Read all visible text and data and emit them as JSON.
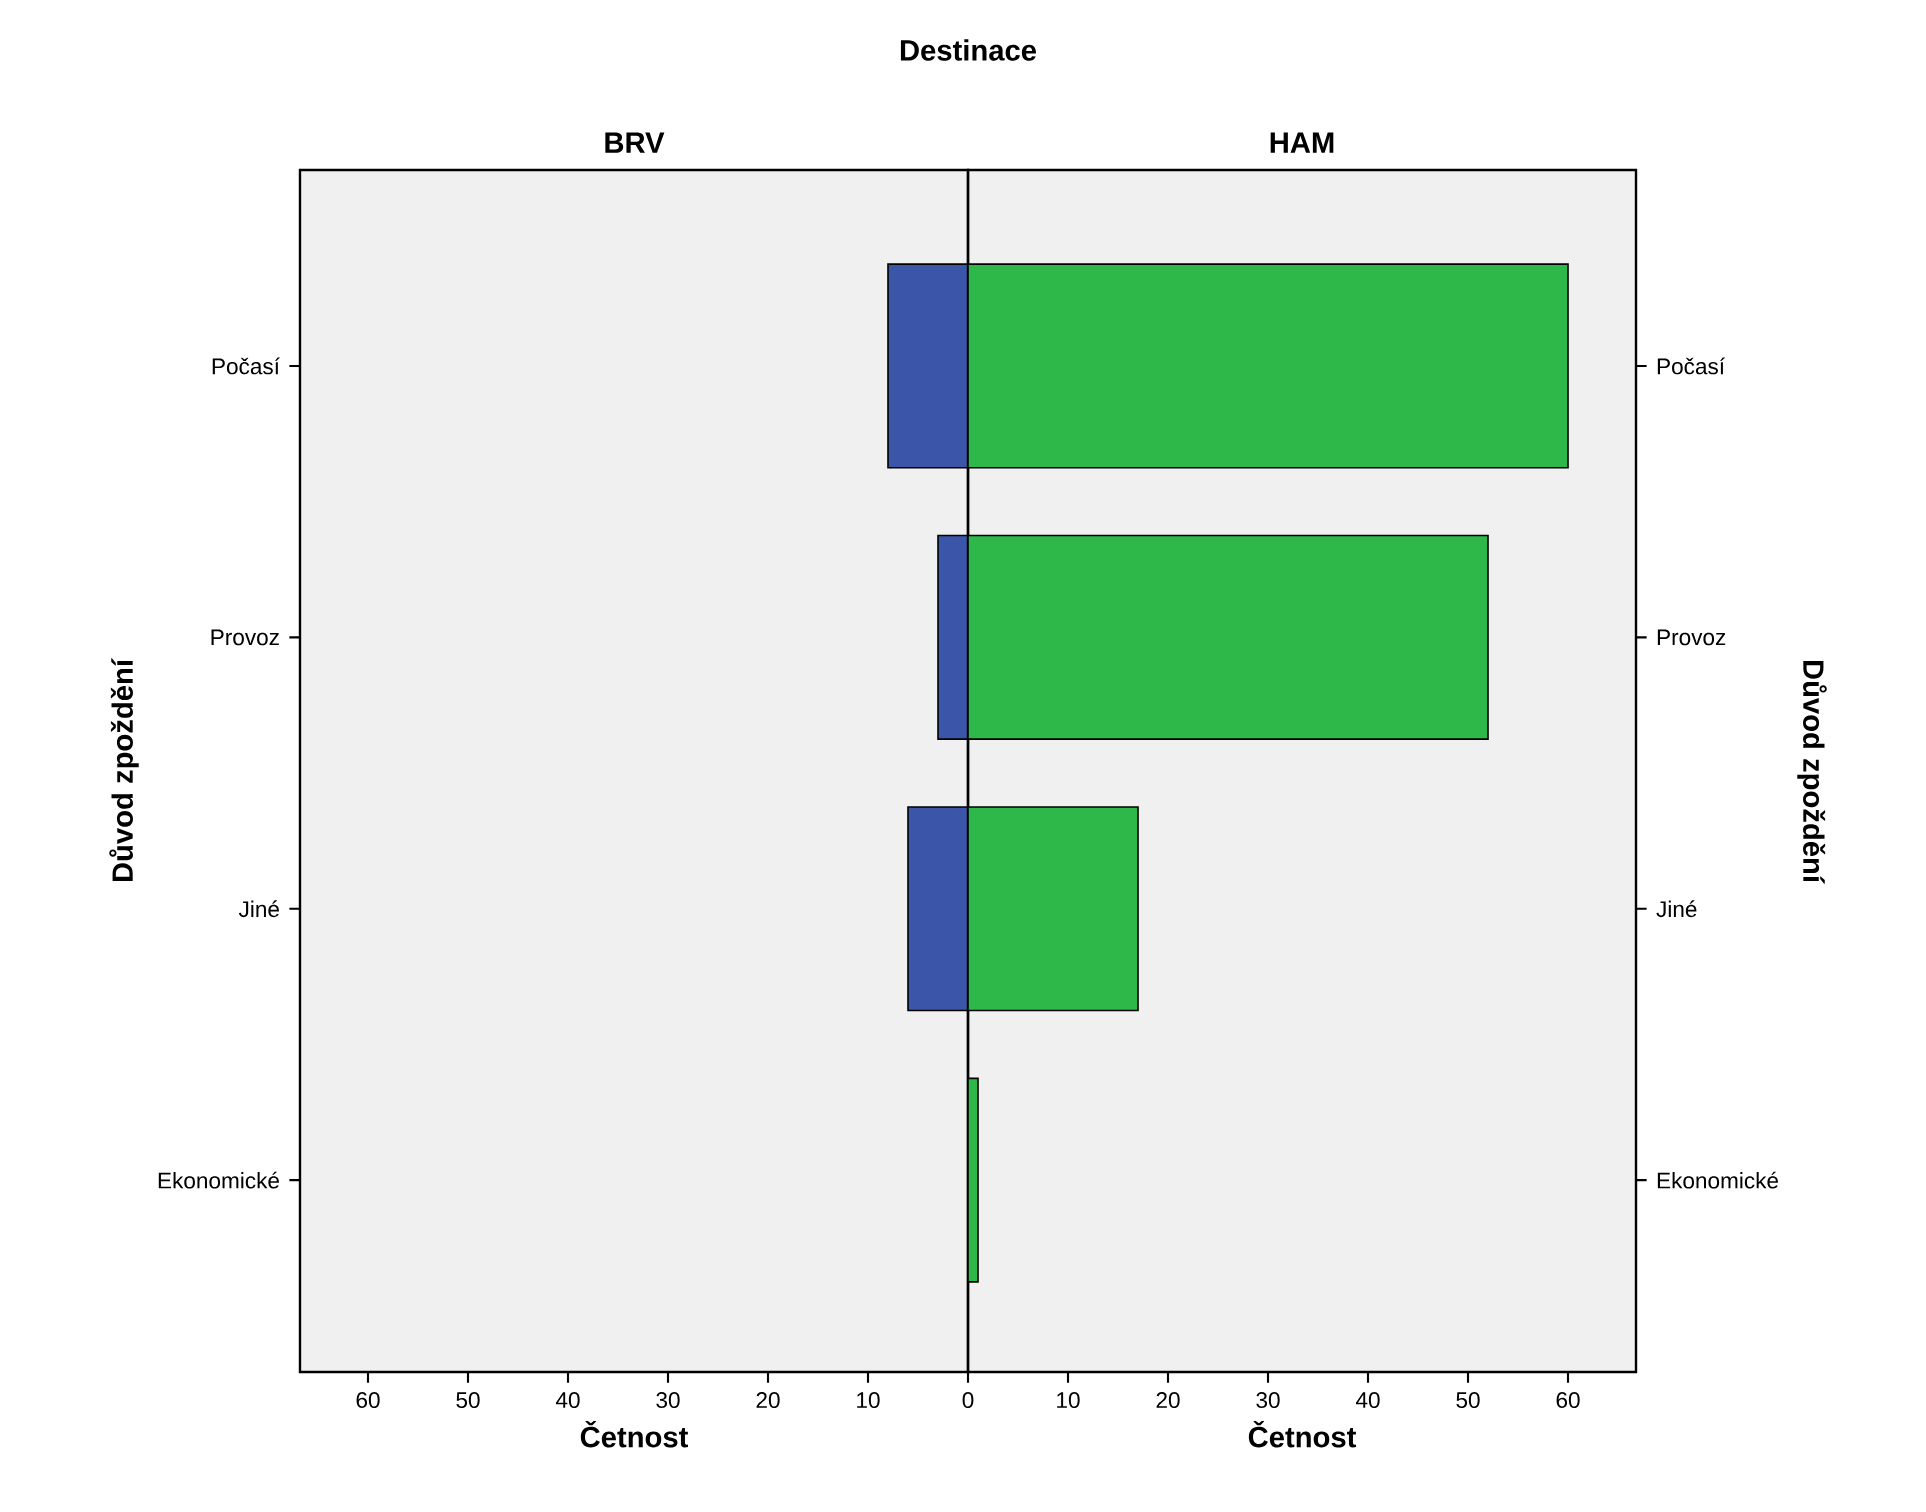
{
  "chart_data": [
    {
      "type": "bar",
      "orientation": "horizontal",
      "title": "Destinace",
      "subtitle": "BRV",
      "categories": [
        "Počasí",
        "Provoz",
        "Jiné",
        "Ekonomické"
      ],
      "values": [
        8,
        3,
        6,
        0
      ],
      "color": "#3b55a8",
      "xlim": [
        66.8,
        0
      ],
      "xticks": [
        10,
        20,
        30,
        40,
        50,
        60
      ],
      "xlabel": "Četnost",
      "ylabel": "Důvod zpoždění"
    },
    {
      "type": "bar",
      "orientation": "horizontal",
      "subtitle": "HAM",
      "categories": [
        "Počasí",
        "Provoz",
        "Jiné",
        "Ekonomické"
      ],
      "values": [
        60,
        52,
        17,
        1
      ],
      "color": "#2fb84a",
      "xlim": [
        0,
        66.8
      ],
      "xticks": [
        0,
        10,
        20,
        30,
        40,
        50,
        60
      ],
      "xlabel": "Četnost",
      "ylabel": "Důvod zpoždění"
    }
  ]
}
